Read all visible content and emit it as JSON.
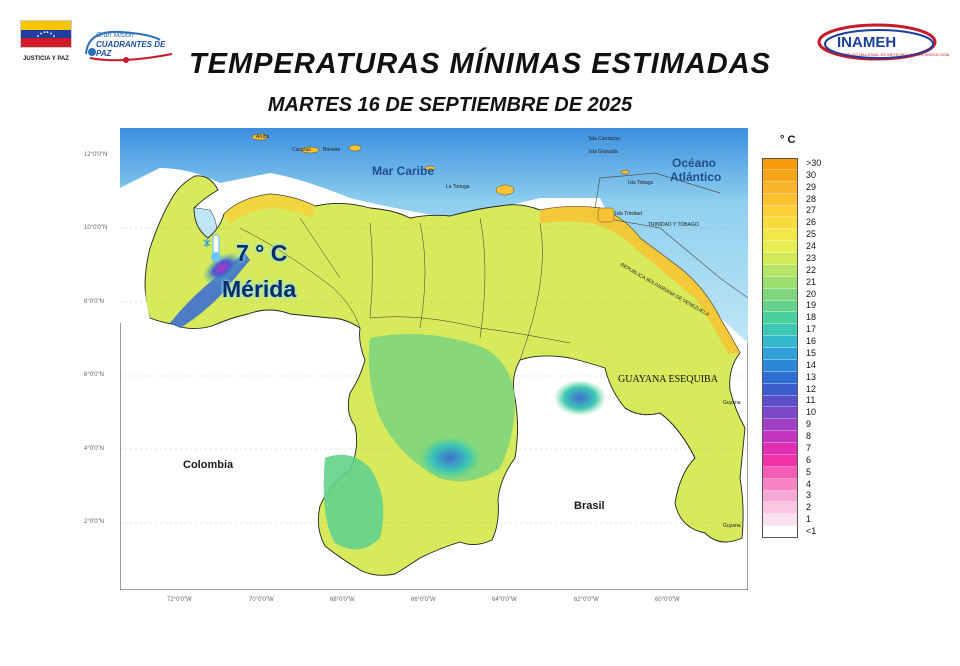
{
  "header": {
    "title": "TEMPERATURAS MÍNIMAS ESTIMADAS",
    "subtitle": "MARTES 16 DE SEPTIEMBRE DE 2025"
  },
  "logos": {
    "left": "JUSTICIA Y PAZ",
    "mision_line1": "Gran Misión",
    "mision_line2": "CUADRANTES DE PAZ",
    "inameh": "INAMEH",
    "inameh_sub": "INSTITUTO NACIONAL DE METEOROLOGÍA E HIDROLOGÍA"
  },
  "map": {
    "sea_labels": {
      "caribbean": "Mar Caribe",
      "ocean_1": "Océano",
      "ocean_2": "Atlántico"
    },
    "country_labels": {
      "colombia": "Colombia",
      "brasil": "Brasil",
      "guyana_esequiba": "GUAYANA ESEQUIBA"
    },
    "small_labels": {
      "aruba": "Aruba",
      "curazao": "Curazao",
      "bonaire": "Bonaire",
      "la_tortuga": "La Tortuga",
      "carriacou": "Isla Carriacou",
      "granada": "Isla Granada",
      "tobago": "Isla Tobago",
      "trinidad": "Isla Trinidad",
      "trinidad_tobago": "TRINIDAD Y TOBAGO",
      "rbv": "REPUBLICA BOLIVARIANA DE VENEZUELA",
      "guyana_1": "Guyana",
      "guyana_2": "Guyana"
    },
    "callout": {
      "temp": "7 ° C",
      "city": "Mérida"
    },
    "lat_ticks": [
      "12°0'0\"N",
      "10°0'0\"N",
      "8°0'0\"N",
      "6°0'0\"N",
      "4°0'0\"N",
      "2°0'0\"N"
    ],
    "lon_ticks": [
      "72°0'0\"W",
      "70°0'0\"W",
      "68°0'0\"W",
      "66°0'0\"W",
      "64°0'0\"W",
      "62°0'0\"W",
      "60°0'0\"W"
    ]
  },
  "legend": {
    "unit": "° C",
    "items": [
      {
        "label": ">30",
        "color": "#f59a0a"
      },
      {
        "label": "30",
        "color": "#f6a51a"
      },
      {
        "label": "29",
        "color": "#f8b52a"
      },
      {
        "label": "28",
        "color": "#f8c233"
      },
      {
        "label": "27",
        "color": "#f9d038"
      },
      {
        "label": "26",
        "color": "#f8dc3e"
      },
      {
        "label": "25",
        "color": "#f2e84a"
      },
      {
        "label": "24",
        "color": "#e6ee52"
      },
      {
        "label": "23",
        "color": "#d0ea5a"
      },
      {
        "label": "22",
        "color": "#b6e466"
      },
      {
        "label": "21",
        "color": "#9cdd70"
      },
      {
        "label": "20",
        "color": "#7fd67c"
      },
      {
        "label": "19",
        "color": "#63d28c"
      },
      {
        "label": "18",
        "color": "#4ccf9f"
      },
      {
        "label": "17",
        "color": "#3cc8b4"
      },
      {
        "label": "16",
        "color": "#36b8cc"
      },
      {
        "label": "15",
        "color": "#2f9fd8"
      },
      {
        "label": "14",
        "color": "#2c86d8"
      },
      {
        "label": "13",
        "color": "#2f6ed3"
      },
      {
        "label": "12",
        "color": "#3d5ccc"
      },
      {
        "label": "11",
        "color": "#5a4fc8"
      },
      {
        "label": "10",
        "color": "#7c46c6"
      },
      {
        "label": "9",
        "color": "#a23ec4"
      },
      {
        "label": "8",
        "color": "#c536c0"
      },
      {
        "label": "7",
        "color": "#e02eb4"
      },
      {
        "label": "6",
        "color": "#f032a6"
      },
      {
        "label": "5",
        "color": "#f55cb4"
      },
      {
        "label": "4",
        "color": "#f684c4"
      },
      {
        "label": "3",
        "color": "#f8a8d4"
      },
      {
        "label": "2",
        "color": "#fac6e2"
      },
      {
        "label": "1",
        "color": "#fbe0ee"
      },
      {
        "label": "<1",
        "color": "#ffffff"
      }
    ]
  }
}
